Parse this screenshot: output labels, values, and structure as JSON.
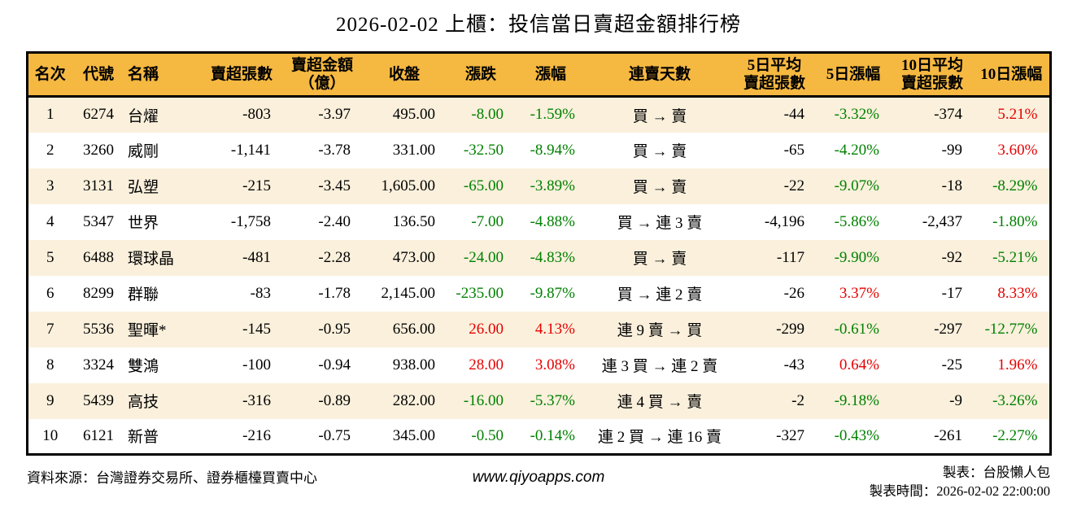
{
  "title": "2026-02-02 上櫃：投信當日賣超金額排行榜",
  "colors": {
    "header_bg": "#F5B841",
    "row_alt_bg": "#FAF0DC",
    "positive_red": "#E60000",
    "negative_green": "#008000"
  },
  "chart_data": {
    "type": "table",
    "title": "2026-02-02 上櫃：投信當日賣超金額排行榜",
    "columns": [
      "名次",
      "代號",
      "名稱",
      "賣超張數",
      "賣超金額\n（億）",
      "收盤",
      "漲跌",
      "漲幅",
      "連賣天數",
      "5日平均\n賣超張數",
      "5日漲幅",
      "10日平均\n賣超張數",
      "10日漲幅"
    ],
    "rows": [
      [
        "1",
        "6274",
        "台燿",
        "-803",
        "-3.97",
        "495.00",
        "-8.00",
        "-1.59%",
        "買 → 賣",
        "-44",
        "-3.32%",
        "-374",
        "5.21%"
      ],
      [
        "2",
        "3260",
        "威剛",
        "-1,141",
        "-3.78",
        "331.00",
        "-32.50",
        "-8.94%",
        "買 → 賣",
        "-65",
        "-4.20%",
        "-99",
        "3.60%"
      ],
      [
        "3",
        "3131",
        "弘塑",
        "-215",
        "-3.45",
        "1,605.00",
        "-65.00",
        "-3.89%",
        "買 → 賣",
        "-22",
        "-9.07%",
        "-18",
        "-8.29%"
      ],
      [
        "4",
        "5347",
        "世界",
        "-1,758",
        "-2.40",
        "136.50",
        "-7.00",
        "-4.88%",
        "買 → 連 3 賣",
        "-4,196",
        "-5.86%",
        "-2,437",
        "-1.80%"
      ],
      [
        "5",
        "6488",
        "環球晶",
        "-481",
        "-2.28",
        "473.00",
        "-24.00",
        "-4.83%",
        "買 → 賣",
        "-117",
        "-9.90%",
        "-92",
        "-5.21%"
      ],
      [
        "6",
        "8299",
        "群聯",
        "-83",
        "-1.78",
        "2,145.00",
        "-235.00",
        "-9.87%",
        "買 → 連 2 賣",
        "-26",
        "3.37%",
        "-17",
        "8.33%"
      ],
      [
        "7",
        "5536",
        "聖暉*",
        "-145",
        "-0.95",
        "656.00",
        "26.00",
        "4.13%",
        "連 9 賣 → 買",
        "-299",
        "-0.61%",
        "-297",
        "-12.77%"
      ],
      [
        "8",
        "3324",
        "雙鴻",
        "-100",
        "-0.94",
        "938.00",
        "28.00",
        "3.08%",
        "連 3 買 → 連 2 賣",
        "-43",
        "0.64%",
        "-25",
        "1.96%"
      ],
      [
        "9",
        "5439",
        "高技",
        "-316",
        "-0.89",
        "282.00",
        "-16.00",
        "-5.37%",
        "連 4 買 → 賣",
        "-2",
        "-9.18%",
        "-9",
        "-3.26%"
      ],
      [
        "10",
        "6121",
        "新普",
        "-216",
        "-0.75",
        "345.00",
        "-0.50",
        "-0.14%",
        "連 2 買 → 連 16 賣",
        "-327",
        "-0.43%",
        "-261",
        "-2.27%"
      ]
    ]
  },
  "footer": {
    "source": "資料來源：台灣證券交易所、證券櫃檯買賣中心",
    "website": "www.qiyoapps.com",
    "made_by": "製表：台股懶人包",
    "made_time": "製表時間：2026-02-02 22:00:00"
  }
}
